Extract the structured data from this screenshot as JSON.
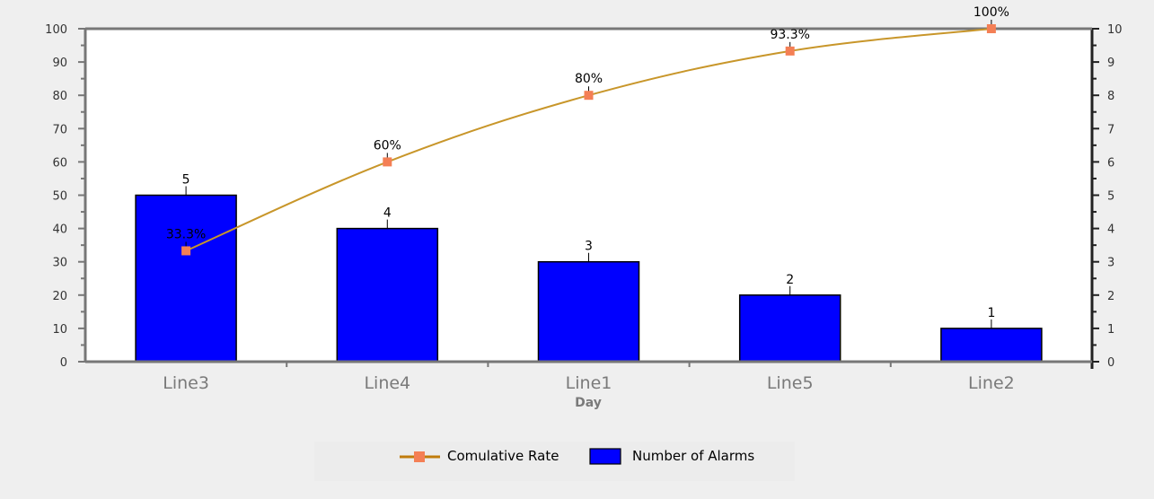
{
  "chart_data": {
    "type": "bar",
    "categories": [
      "Line3",
      "Line4",
      "Line1",
      "Line5",
      "Line2"
    ],
    "xlabel": "Day",
    "series": [
      {
        "name": "Number of Alarms",
        "type": "bar",
        "axis": "right",
        "values": [
          5,
          4,
          3,
          2,
          1
        ],
        "labels": [
          "5",
          "4",
          "3",
          "2",
          "1"
        ],
        "color": "#0000ff"
      },
      {
        "name": "Comulative Rate",
        "type": "line",
        "axis": "left",
        "values": [
          33.3,
          60,
          80,
          93.3,
          100
        ],
        "labels": [
          "33.3%",
          "60%",
          "80%",
          "93.3%",
          "100%"
        ],
        "color": "#c8962a",
        "marker_color": "#f47f55"
      }
    ],
    "left_axis": {
      "ylim": [
        0,
        100
      ],
      "ticks": [
        "0",
        "10",
        "20",
        "30",
        "40",
        "50",
        "60",
        "70",
        "80",
        "90",
        "100"
      ]
    },
    "right_axis": {
      "ylim": [
        0,
        10
      ],
      "ticks": [
        "0",
        "1",
        "2",
        "3",
        "4",
        "5",
        "6",
        "7",
        "8",
        "9",
        "10"
      ]
    },
    "grid": false,
    "legend_position": "bottom-center",
    "legend": [
      "Comulative Rate",
      "Number of Alarms"
    ]
  }
}
